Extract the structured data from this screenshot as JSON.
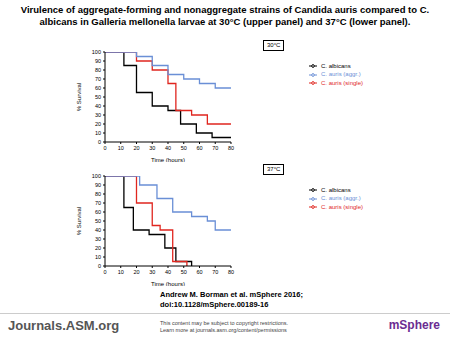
{
  "title": "Virulence of aggregate-forming and nonaggregate strains of Candida auris compared to C. albicans in Galleria mellonella larvae at 30°C (upper panel) and 37°C (lower panel).",
  "citation": [
    "Andrew M. Borman et al. mSphere 2016;",
    "doi:10.1128/mSphere.00189-16"
  ],
  "footer": {
    "left": "Journals.ASM.org",
    "notice": [
      "This content may be subject to copyright restrictions.",
      "Learn more at journals.asm.org/content/permissions"
    ],
    "right": "mSphere"
  },
  "chart_data": [
    {
      "type": "line",
      "title": "30°C",
      "x_label": "Time (hours)",
      "y_label": "% Survival",
      "xlim": [
        0,
        80
      ],
      "xticks": [
        0,
        10,
        20,
        30,
        40,
        50,
        60,
        70,
        80
      ],
      "ylim": [
        0,
        100
      ],
      "yticks": [
        0,
        10,
        20,
        30,
        40,
        50,
        60,
        70,
        80,
        90,
        100
      ],
      "grid": false,
      "legend": "right",
      "line_style": "step",
      "series": [
        {
          "name": "C. albicans",
          "color": "#000000",
          "x": [
            0,
            12,
            20,
            30,
            40,
            48,
            58,
            68,
            80
          ],
          "values": [
            100,
            85,
            55,
            40,
            35,
            20,
            10,
            5,
            5
          ]
        },
        {
          "name": "C. auris (single)",
          "color": "#e0261f",
          "x": [
            0,
            20,
            30,
            40,
            45,
            55,
            65,
            80
          ],
          "values": [
            100,
            90,
            80,
            65,
            35,
            30,
            20,
            20
          ]
        },
        {
          "name": "C. auris (aggr.)",
          "color": "#6a8fd6",
          "x": [
            0,
            20,
            30,
            40,
            50,
            60,
            70,
            80
          ],
          "values": [
            100,
            95,
            85,
            75,
            70,
            65,
            60,
            60
          ]
        }
      ]
    },
    {
      "type": "line",
      "title": "37°C",
      "x_label": "Time (hours)",
      "y_label": "% Survival",
      "xlim": [
        0,
        80
      ],
      "xticks": [
        0,
        10,
        20,
        30,
        40,
        50,
        60,
        70,
        80
      ],
      "ylim": [
        0,
        100
      ],
      "yticks": [
        0,
        10,
        20,
        30,
        40,
        50,
        60,
        70,
        80,
        90,
        100
      ],
      "grid": false,
      "legend": "right",
      "line_style": "step",
      "series": [
        {
          "name": "C. albicans",
          "color": "#000000",
          "x": [
            0,
            12,
            18,
            28,
            38,
            45,
            55
          ],
          "values": [
            100,
            65,
            40,
            35,
            20,
            5,
            0
          ]
        },
        {
          "name": "C. auris (single)",
          "color": "#e0261f",
          "x": [
            0,
            20,
            30,
            35,
            43,
            52
          ],
          "values": [
            100,
            70,
            45,
            40,
            5,
            0
          ]
        },
        {
          "name": "C. auris (aggr.)",
          "color": "#6a8fd6",
          "x": [
            0,
            22,
            33,
            43,
            55,
            65,
            70,
            80
          ],
          "values": [
            100,
            90,
            75,
            60,
            55,
            50,
            40,
            40
          ]
        }
      ]
    }
  ]
}
